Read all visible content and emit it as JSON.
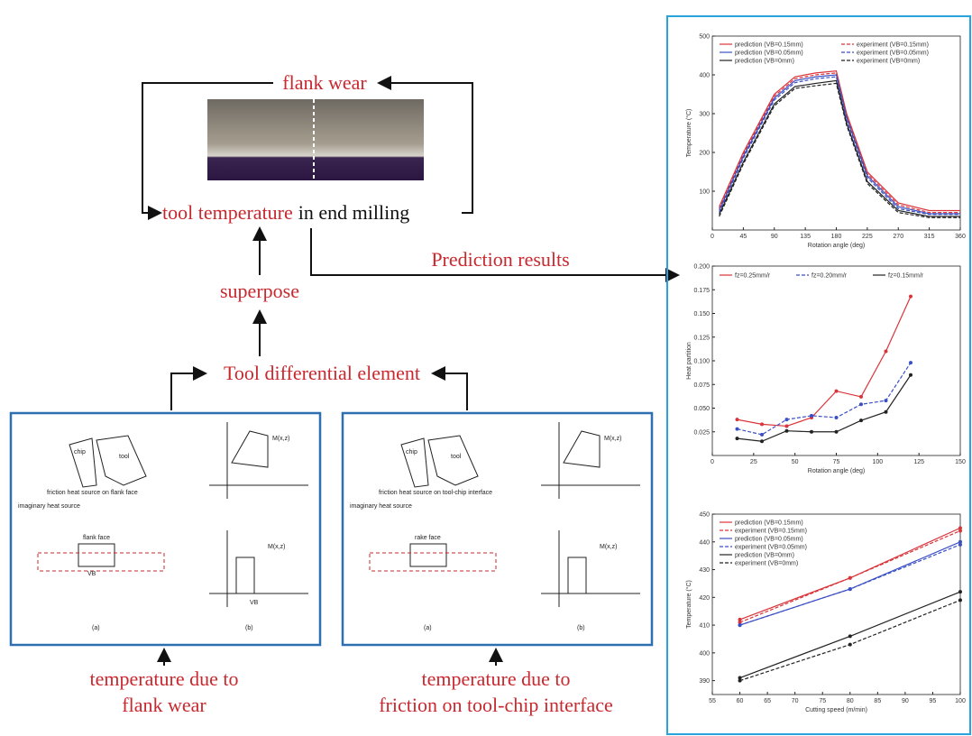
{
  "diagram": {
    "flank_wear": "flank wear",
    "tool_temperature": "tool temperature",
    "in_end_milling": "in end milling",
    "superpose": "superpose",
    "differential": "Tool differential element",
    "prediction": "Prediction results",
    "panels": [
      {
        "caption": [
          "temperature due to",
          "flank wear"
        ],
        "labels": {
          "tool": "tool",
          "chip": "chip",
          "imaginary": "imaginary heat source",
          "friction": "friction heat source on flank face",
          "face": "flank face",
          "a": "(a)",
          "b": "(b)",
          "m1": "M(x,z)",
          "m2": "M(x,z)",
          "vb1": "VB",
          "vb2": "VB"
        }
      },
      {
        "caption": [
          "temperature due to",
          "friction on tool-chip interface"
        ],
        "labels": {
          "tool": "tool",
          "chip": "chip",
          "imaginary": "imaginary heat source",
          "friction": "friction heat source on tool-chip interface",
          "face": "rake face",
          "a": "(a)",
          "b": "(b)",
          "m1": "M(x,z)",
          "m2": "M(x,z)"
        }
      }
    ]
  },
  "charts": [
    {
      "type": "line",
      "x_label": "Rotation angle (deg)",
      "y_label": "Temperature (°C)",
      "xlim": [
        0,
        360
      ],
      "ylim": [
        0,
        500
      ],
      "xticks": [
        0,
        45,
        90,
        135,
        180,
        225,
        270,
        315,
        360
      ],
      "yticks": [
        100,
        200,
        300,
        400,
        500
      ],
      "markers": false,
      "x": [
        10,
        45,
        90,
        120,
        150,
        180,
        195,
        225,
        270,
        315,
        360
      ],
      "series": [
        {
          "name": "prediction (VB=0.15mm)",
          "color": "#d9343a",
          "dashed": false,
          "values": [
            60,
            200,
            350,
            395,
            405,
            410,
            300,
            150,
            70,
            50,
            50
          ]
        },
        {
          "name": "experiment (VB=0.15mm)",
          "color": "#d9343a",
          "dashed": true,
          "values": [
            55,
            195,
            345,
            390,
            400,
            405,
            295,
            145,
            65,
            45,
            45
          ]
        },
        {
          "name": "prediction (VB=0.05mm)",
          "color": "#3a4fc4",
          "dashed": false,
          "values": [
            50,
            190,
            340,
            385,
            395,
            400,
            290,
            140,
            60,
            42,
            42
          ]
        },
        {
          "name": "experiment (VB=0.05mm)",
          "color": "#3a4fc4",
          "dashed": true,
          "values": [
            45,
            185,
            335,
            380,
            390,
            395,
            285,
            135,
            55,
            40,
            40
          ]
        },
        {
          "name": "prediction (VB=0mm)",
          "color": "#222222",
          "dashed": false,
          "values": [
            40,
            175,
            325,
            370,
            378,
            385,
            275,
            125,
            50,
            35,
            35
          ]
        },
        {
          "name": "experiment (VB=0mm)",
          "color": "#222222",
          "dashed": true,
          "values": [
            35,
            170,
            320,
            365,
            372,
            378,
            270,
            120,
            45,
            32,
            32
          ]
        }
      ]
    },
    {
      "type": "line",
      "x_label": "Rotation angle (deg)",
      "y_label": "Heat partition",
      "xlim": [
        0,
        150
      ],
      "ylim": [
        0,
        0.2
      ],
      "xticks": [
        0,
        25,
        50,
        75,
        100,
        125,
        150
      ],
      "yticks": [
        {
          "value": 0.025,
          "label": "0.025"
        },
        {
          "value": 0.05,
          "label": "0.050"
        },
        {
          "value": 0.075,
          "label": "0.075"
        },
        {
          "value": 0.1,
          "label": "0.100"
        },
        {
          "value": 0.125,
          "label": "0.125"
        },
        {
          "value": 0.15,
          "label": "0.150"
        },
        {
          "value": 0.175,
          "label": "0.175"
        },
        {
          "value": 0.2,
          "label": "0.200"
        }
      ],
      "markers": true,
      "x": [
        15,
        30,
        45,
        60,
        75,
        90,
        105,
        120
      ],
      "series": [
        {
          "name": "fz=0.25mm/r",
          "color": "#d9343a",
          "dashed": false,
          "values": [
            0.038,
            0.033,
            0.031,
            0.04,
            0.068,
            0.062,
            0.11,
            0.168
          ]
        },
        {
          "name": "fz=0.20mm/r",
          "color": "#3a4fc4",
          "dashed": true,
          "values": [
            0.028,
            0.022,
            0.038,
            0.042,
            0.04,
            0.054,
            0.058,
            0.098
          ]
        },
        {
          "name": "fz=0.15mm/r",
          "color": "#222222",
          "dashed": false,
          "values": [
            0.018,
            0.015,
            0.026,
            0.025,
            0.025,
            0.037,
            0.046,
            0.085
          ]
        }
      ]
    },
    {
      "type": "line",
      "x_label": "Cutting speed (m/min)",
      "y_label": "Temperature (°C)",
      "xlim": [
        55,
        100
      ],
      "ylim": [
        385,
        450
      ],
      "xticks": [
        55,
        60,
        65,
        70,
        75,
        80,
        85,
        90,
        95,
        100
      ],
      "yticks": [
        390,
        400,
        410,
        420,
        430,
        440,
        450
      ],
      "markers": true,
      "x": [
        60,
        80,
        100
      ],
      "series": [
        {
          "name": "prediction (VB=0.15mm)",
          "color": "#d9343a",
          "dashed": false,
          "values": [
            412,
            427,
            445
          ]
        },
        {
          "name": "experiment (VB=0.15mm)",
          "color": "#d9343a",
          "dashed": true,
          "values": [
            411,
            427,
            444
          ]
        },
        {
          "name": "prediction (VB=0.05mm)",
          "color": "#3a4fc4",
          "dashed": false,
          "values": [
            410,
            423,
            440
          ]
        },
        {
          "name": "experiment (VB=0.05mm)",
          "color": "#3a4fc4",
          "dashed": true,
          "values": [
            410,
            423,
            439
          ]
        },
        {
          "name": "prediction (VB=0mm)",
          "color": "#222222",
          "dashed": false,
          "values": [
            391,
            406,
            422
          ]
        },
        {
          "name": "experiment (VB=0mm)",
          "color": "#222222",
          "dashed": true,
          "values": [
            390,
            403,
            419
          ]
        }
      ]
    }
  ]
}
